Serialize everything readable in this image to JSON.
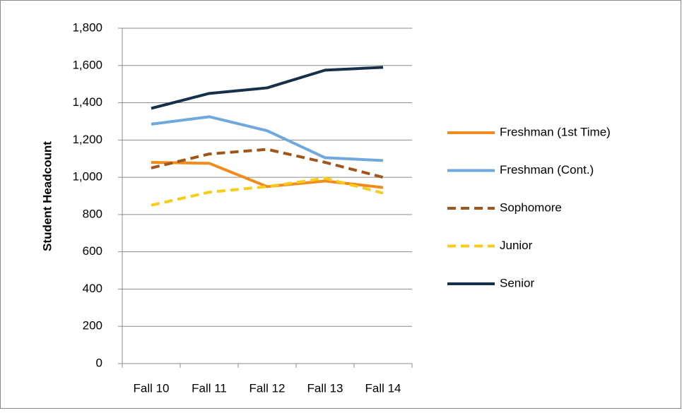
{
  "chart_data": {
    "type": "line",
    "y_label": "Student Headcount",
    "categories": [
      "Fall 10",
      "Fall 11",
      "Fall 12",
      "Fall 13",
      "Fall 14"
    ],
    "series": [
      {
        "name": "Freshman (1st Time)",
        "color": "#f28a1d",
        "dashed": false,
        "values": [
          1080,
          1075,
          950,
          980,
          945
        ]
      },
      {
        "name": "Freshman (Cont.)",
        "color": "#6fa8dc",
        "dashed": false,
        "values": [
          1285,
          1325,
          1250,
          1105,
          1090
        ]
      },
      {
        "name": "Sophomore",
        "color": "#a0561a",
        "dashed": true,
        "values": [
          1050,
          1125,
          1150,
          1080,
          1000
        ]
      },
      {
        "name": "Junior",
        "color": "#f8cc1b",
        "dashed": true,
        "values": [
          850,
          920,
          950,
          995,
          915
        ]
      },
      {
        "name": "Senior",
        "color": "#17304a",
        "dashed": false,
        "values": [
          1370,
          1450,
          1480,
          1575,
          1590
        ]
      }
    ],
    "ylim": [
      0,
      1800
    ],
    "yticks": [
      0,
      200,
      400,
      600,
      800,
      {
        "value": 1000,
        "label": "1,000"
      },
      {
        "value": 1200,
        "label": "1,200"
      },
      {
        "value": 1400,
        "label": "1,400"
      },
      {
        "value": 1600,
        "label": "1,600"
      },
      {
        "value": 1800,
        "label": "1,800"
      }
    ],
    "grid": true,
    "legend": "right"
  }
}
